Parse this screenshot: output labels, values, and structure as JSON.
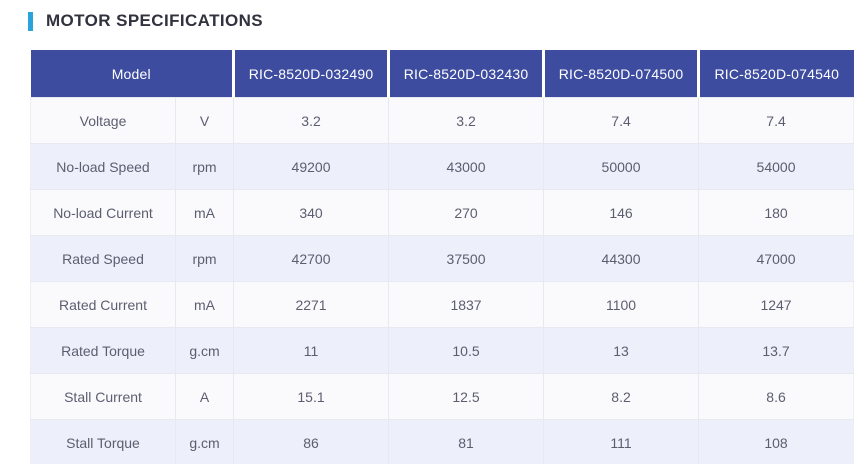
{
  "page": {
    "title": "MOTOR SPECIFICATIONS"
  },
  "colors": {
    "accent_bar": "#2aa3dc",
    "header_bg": "#3d4c9f",
    "row_alt": "#edeffa",
    "row_base": "#fafafc",
    "body_text": "#5c5e70",
    "title_text": "#32323f"
  },
  "table": {
    "header": {
      "model_label": "Model",
      "models": [
        "RIC-8520D-032490",
        "RIC-8520D-032430",
        "RIC-8520D-074500",
        "RIC-8520D-074540"
      ]
    },
    "rows": [
      {
        "param": "Voltage",
        "unit": "V",
        "values": [
          "3.2",
          "3.2",
          "7.4",
          "7.4"
        ]
      },
      {
        "param": "No-load Speed",
        "unit": "rpm",
        "values": [
          "49200",
          "43000",
          "50000",
          "54000"
        ]
      },
      {
        "param": "No-load Current",
        "unit": "mA",
        "values": [
          "340",
          "270",
          "146",
          "180"
        ]
      },
      {
        "param": "Rated Speed",
        "unit": "rpm",
        "values": [
          "42700",
          "37500",
          "44300",
          "47000"
        ]
      },
      {
        "param": "Rated Current",
        "unit": "mA",
        "values": [
          "2271",
          "1837",
          "1100",
          "1247"
        ]
      },
      {
        "param": "Rated Torque",
        "unit": "g.cm",
        "values": [
          "11",
          "10.5",
          "13",
          "13.7"
        ]
      },
      {
        "param": "Stall Current",
        "unit": "A",
        "values": [
          "15.1",
          "12.5",
          "8.2",
          "8.6"
        ]
      },
      {
        "param": "Stall Torque",
        "unit": "g.cm",
        "values": [
          "86",
          "81",
          "111",
          "108"
        ]
      }
    ]
  }
}
